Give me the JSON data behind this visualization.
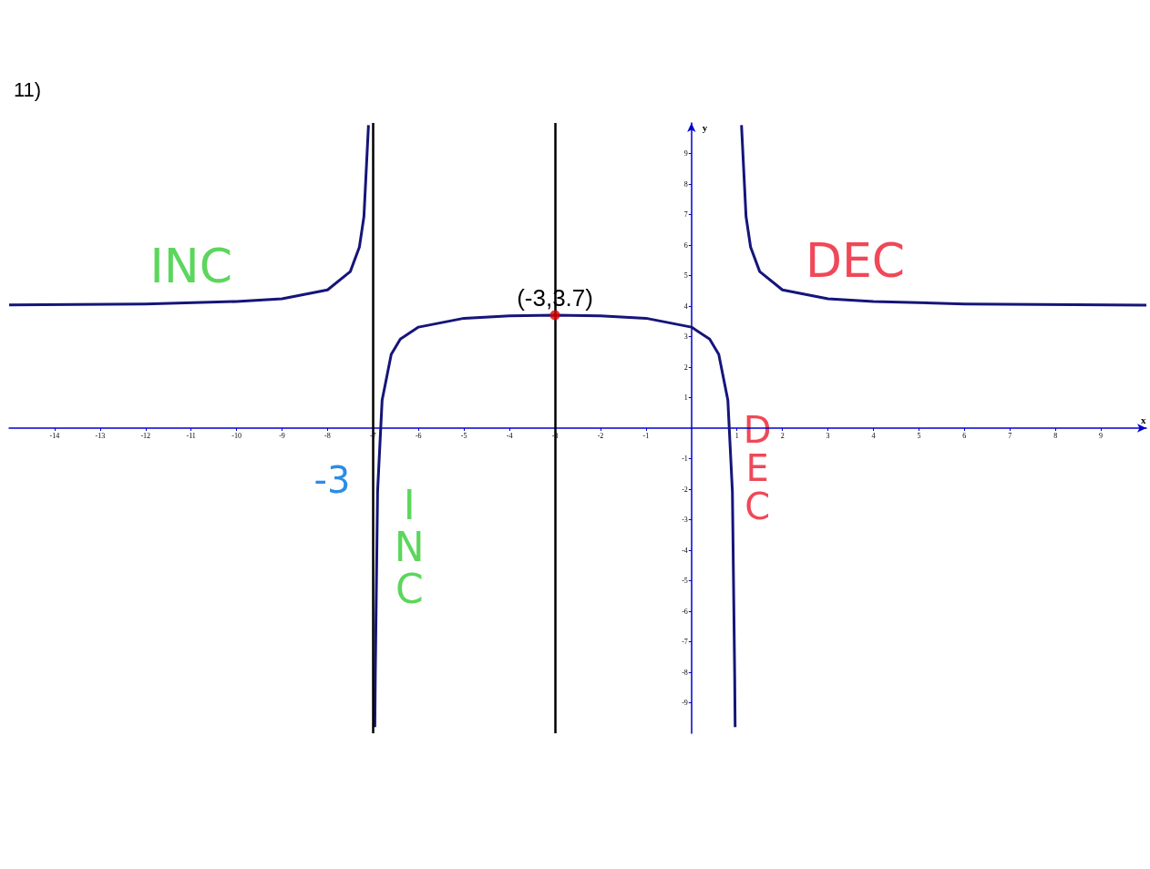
{
  "chart_data": {
    "type": "line",
    "title": "11)",
    "xlabel": "x",
    "ylabel": "y",
    "xlim": [
      -15,
      10
    ],
    "ylim": [
      -10,
      10
    ],
    "xticks": [
      -14,
      -13,
      -12,
      -11,
      -10,
      -9,
      -8,
      -7,
      -6,
      -5,
      -4,
      -3,
      -2,
      -1,
      1,
      2,
      3,
      4,
      5,
      6,
      7,
      8,
      9
    ],
    "yticks": [
      -9,
      -8,
      -7,
      -6,
      -5,
      -4,
      -3,
      -2,
      -1,
      1,
      2,
      3,
      4,
      5,
      6,
      7,
      8,
      9
    ],
    "grid": false,
    "series": [
      {
        "color": "#15157a",
        "x": [
          -15,
          -12,
          -10,
          -9,
          -8,
          -7.5,
          -7.3,
          -7.2,
          -7.1
        ],
        "values": [
          4.04,
          4.07,
          4.15,
          4.24,
          4.53,
          5.13,
          5.93,
          6.93,
          9.93
        ]
      },
      {
        "color": "#15157a",
        "x": [
          -6.96,
          -6.95,
          -6.9,
          -6.8,
          -6.6,
          -6.4,
          -6,
          -5,
          -4,
          -3,
          -2,
          -1,
          0,
          0.4,
          0.6,
          0.8,
          0.9,
          0.95,
          0.96
        ],
        "values": [
          -9.8,
          -8.07,
          -2.08,
          0.92,
          2.42,
          2.92,
          3.31,
          3.6,
          3.68,
          3.7,
          3.68,
          3.6,
          3.31,
          2.92,
          2.42,
          0.92,
          -2.08,
          -8.07,
          -9.8
        ]
      },
      {
        "color": "#15157a",
        "x": [
          1.1,
          1.2,
          1.3,
          1.5,
          2,
          3,
          4,
          6,
          10
        ],
        "values": [
          9.93,
          6.93,
          5.93,
          5.13,
          4.53,
          4.24,
          4.15,
          4.07,
          4.03
        ]
      },
      {
        "type": "scatter",
        "color": "#e00000",
        "x": [
          -3
        ],
        "values": [
          3.7
        ]
      }
    ],
    "ref_lines": [
      {
        "axis": "x",
        "value": -7,
        "color": "#000000"
      },
      {
        "axis": "x",
        "value": -3,
        "color": "#000000"
      }
    ],
    "annotations": [
      "INC",
      "DEC",
      "INC",
      "DEC",
      "-3",
      {
        "text": "(-3,3.7)",
        "x": -3,
        "y": 3.7
      }
    ]
  }
}
